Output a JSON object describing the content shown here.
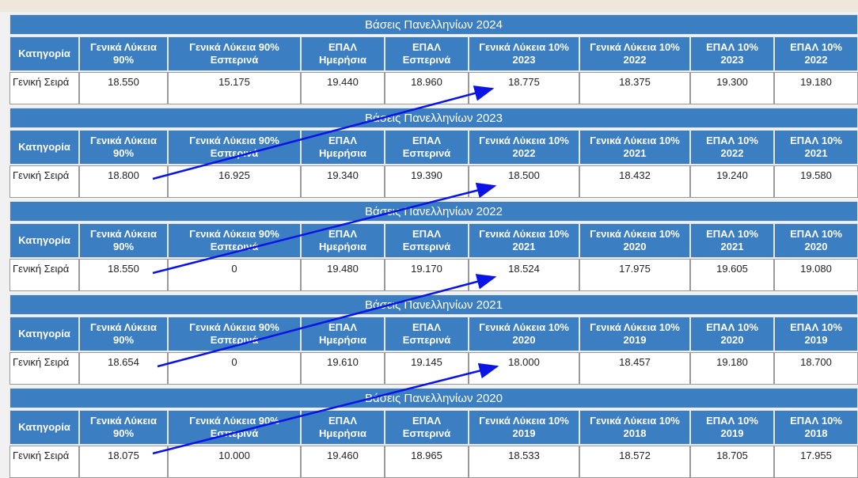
{
  "tables": [
    {
      "title": "Βάσεις Πανελληνίων 2024",
      "header": [
        "Κατηγορία",
        "Γενικά Λύκεια 90%",
        "Γενικά Λύκεια 90% Εσπερινά",
        "ΕΠΑΛ Ημερήσια",
        "ΕΠΑΛ Εσπερινά",
        "Γενικά Λύκεια 10% 2023",
        "Γενικά Λύκεια 10% 2022",
        "ΕΠΑΛ 10% 2023",
        "ΕΠΑΛ 10% 2022"
      ],
      "row": [
        "Γενική Σειρά",
        "18.550",
        "15.175",
        "19.440",
        "18.960",
        "18.775",
        "18.375",
        "19.300",
        "19.180"
      ]
    },
    {
      "title": "Βάσεις Πανελληνίων 2023",
      "header": [
        "Κατηγορία",
        "Γενικά Λύκεια 90%",
        "Γενικά Λύκεια 90% Εσπερινά",
        "ΕΠΑΛ Ημερήσια",
        "ΕΠΑΛ Εσπερινά",
        "Γενικά Λύκεια 10% 2022",
        "Γενικά Λύκεια 10% 2021",
        "ΕΠΑΛ 10% 2022",
        "ΕΠΑΛ 10% 2021"
      ],
      "row": [
        "Γενική Σειρά",
        "18.800",
        "16.925",
        "19.340",
        "19.390",
        "18.500",
        "18.432",
        "19.240",
        "19.580"
      ]
    },
    {
      "title": "Βάσεις Πανελληνίων 2022",
      "header": [
        "Κατηγορία",
        "Γενικά Λύκεια 90%",
        "Γενικά Λύκεια 90% Εσπερινά",
        "ΕΠΑΛ Ημερήσια",
        "ΕΠΑΛ Εσπερινά",
        "Γενικά Λύκεια 10% 2021",
        "Γενικά Λύκεια 10% 2020",
        "ΕΠΑΛ 10% 2021",
        "ΕΠΑΛ 10% 2020"
      ],
      "row": [
        "Γενική Σειρά",
        "18.550",
        "0",
        "19.480",
        "19.170",
        "18.524",
        "17.975",
        "19.605",
        "19.080"
      ]
    },
    {
      "title": "Βάσεις Πανελληνίων 2021",
      "header": [
        "Κατηγορία",
        "Γενικά Λύκεια 90%",
        "Γενικά Λύκεια 90% Εσπερινά",
        "ΕΠΑΛ Ημερήσια",
        "ΕΠΑΛ Εσπερινά",
        "Γενικά Λύκεια 10% 2020",
        "Γενικά Λύκεια 10% 2019",
        "ΕΠΑΛ 10% 2020",
        "ΕΠΑΛ 10% 2019"
      ],
      "row": [
        "Γενική Σειρά",
        "18.654",
        "0",
        "19.610",
        "19.145",
        "18.000",
        "18.457",
        "19.180",
        "18.700"
      ]
    },
    {
      "title": "Βάσεις Πανελληνίων 2020",
      "header": [
        "Κατηγορία",
        "Γενικά Λύκεια 90%",
        "Γενικά Λύκεια 90% Εσπερινά",
        "ΕΠΑΛ Ημερήσια",
        "ΕΠΑΛ Εσπερινά",
        "Γενικά Λύκεια 10% 2019",
        "Γενικά Λύκεια 10% 2018",
        "ΕΠΑΛ 10% 2019",
        "ΕΠΑΛ 10% 2018"
      ],
      "row": [
        "Γενική Σειρά",
        "18.075",
        "10.000",
        "19.460",
        "18.965",
        "18.533",
        "18.572",
        "18.705",
        "17.955"
      ]
    }
  ]
}
